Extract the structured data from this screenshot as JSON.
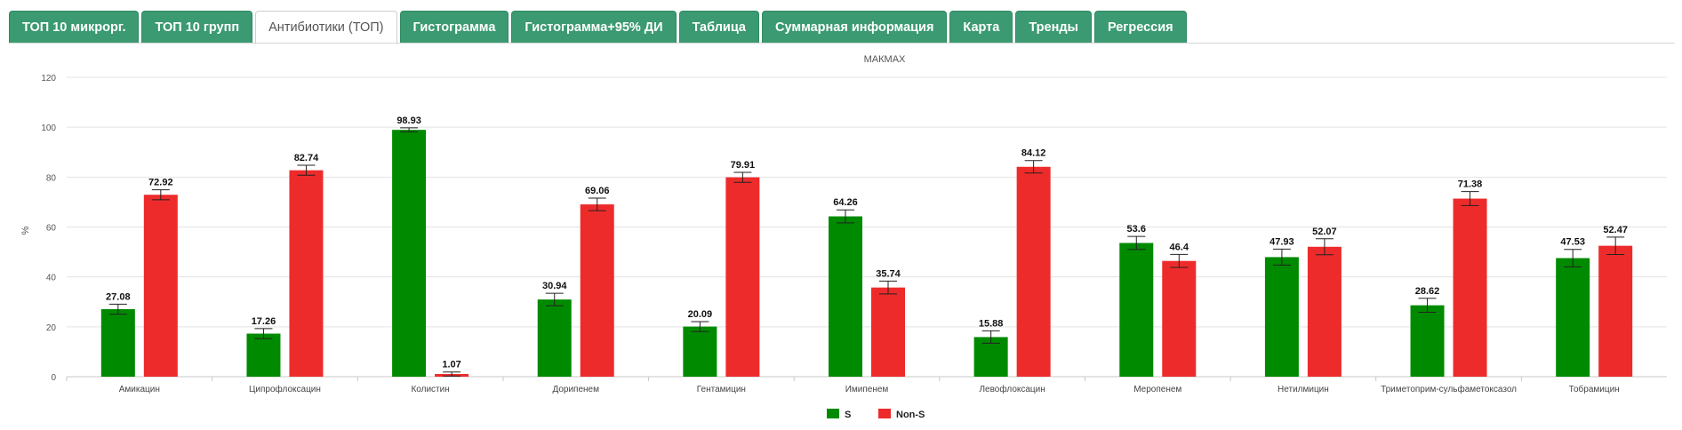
{
  "tabs": [
    {
      "label": "ТОП 10 микрорг.",
      "active": false
    },
    {
      "label": "ТОП 10 групп",
      "active": false
    },
    {
      "label": "Антибиотики (ТОП)",
      "active": true
    },
    {
      "label": "Гистограмма",
      "active": false
    },
    {
      "label": "Гистограмма+95% ДИ",
      "active": false
    },
    {
      "label": "Таблица",
      "active": false
    },
    {
      "label": "Суммарная информация",
      "active": false
    },
    {
      "label": "Карта",
      "active": false
    },
    {
      "label": "Тренды",
      "active": false
    },
    {
      "label": "Регрессия",
      "active": false
    }
  ],
  "colors": {
    "tab_bg": "#3b9a71",
    "s": "#008a00",
    "non_s": "#ee2b2b"
  },
  "chart_data": {
    "type": "bar",
    "title": "МАКМАХ",
    "xlabel": "",
    "ylabel": "%",
    "ylim": [
      0,
      120
    ],
    "yticks": [
      0,
      20,
      40,
      60,
      80,
      100,
      120
    ],
    "grid": true,
    "legend_position": "bottom-center",
    "error_bars": true,
    "categories": [
      "Амикацин",
      "Ципрофлоксацин",
      "Колистин",
      "Дорипенем",
      "Гентамицин",
      "Имипенем",
      "Левофлоксацин",
      "Меропенем",
      "Нетилмицин",
      "Триметоприм-сульфаметоксазол",
      "Тобрамицин"
    ],
    "series": [
      {
        "name": "S",
        "color": "#008a00",
        "values": [
          27.08,
          17.26,
          98.93,
          30.94,
          20.09,
          64.26,
          15.88,
          53.6,
          47.93,
          28.62,
          47.53
        ],
        "errors": [
          2.0,
          2.0,
          0.8,
          2.5,
          2.0,
          2.6,
          2.5,
          2.6,
          3.2,
          2.8,
          3.5
        ]
      },
      {
        "name": "Non-S",
        "color": "#ee2b2b",
        "values": [
          72.92,
          82.74,
          1.07,
          69.06,
          79.91,
          35.74,
          84.12,
          46.4,
          52.07,
          71.38,
          52.47
        ],
        "errors": [
          2.0,
          2.0,
          0.8,
          2.5,
          2.0,
          2.6,
          2.5,
          2.6,
          3.2,
          2.8,
          3.5
        ]
      }
    ]
  }
}
